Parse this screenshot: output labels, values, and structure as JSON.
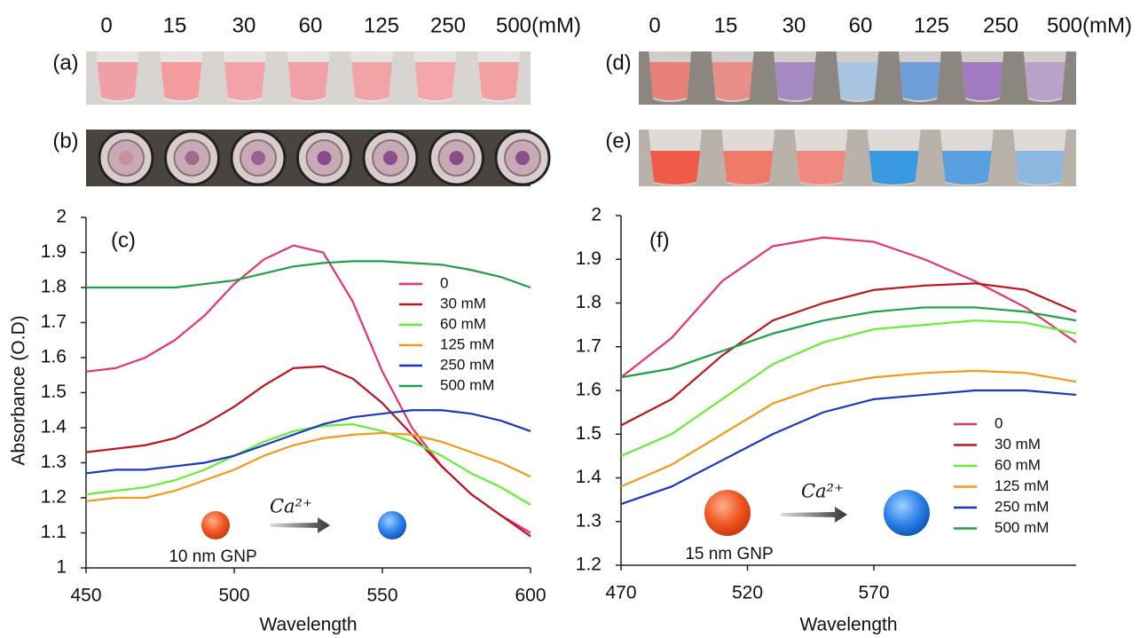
{
  "photo_panels": {
    "left": {
      "concentrations": [
        "0",
        "15",
        "30",
        "60",
        "125",
        "250",
        "500(mM)"
      ],
      "labels": [
        "(a)",
        "(b)"
      ]
    },
    "right": {
      "concentrations": [
        "0",
        "15",
        "30",
        "60",
        "125",
        "250",
        "500(mM)"
      ],
      "labels": [
        "(d)",
        "(e)"
      ]
    }
  },
  "chart_data": [
    {
      "type": "line",
      "xlabel": "Wavelength",
      "ylabel": "Absorbance (O.D)",
      "annotations": [
        "(c)",
        "10 nm GNP",
        "Ca²⁺"
      ],
      "x": [
        450,
        460,
        470,
        480,
        490,
        500,
        510,
        520,
        530,
        540,
        550,
        560,
        570,
        580,
        590,
        600
      ],
      "xlim": [
        450,
        600
      ],
      "xticks": [
        450,
        500,
        550,
        600
      ],
      "ylim": [
        1,
        2
      ],
      "yticks": [
        1,
        1.1,
        1.2,
        1.3,
        1.4,
        1.5,
        1.6,
        1.7,
        1.8,
        1.9,
        2
      ],
      "legend": "upper right",
      "series": [
        {
          "name": "0",
          "color": "#e8336e",
          "values": [
            1.56,
            1.57,
            1.6,
            1.65,
            1.72,
            1.81,
            1.88,
            1.92,
            1.9,
            1.76,
            1.56,
            1.4,
            1.29,
            1.21,
            1.15,
            1.1
          ]
        },
        {
          "name": "30 mM",
          "color": "#c0141e",
          "values": [
            1.33,
            1.34,
            1.35,
            1.37,
            1.41,
            1.46,
            1.52,
            1.57,
            1.575,
            1.54,
            1.47,
            1.38,
            1.29,
            1.21,
            1.15,
            1.09
          ]
        },
        {
          "name": "60 mM",
          "color": "#66ee33",
          "values": [
            1.21,
            1.22,
            1.23,
            1.25,
            1.28,
            1.32,
            1.36,
            1.39,
            1.405,
            1.41,
            1.39,
            1.36,
            1.32,
            1.27,
            1.23,
            1.18
          ]
        },
        {
          "name": "125 mM",
          "color": "#f39a1a",
          "values": [
            1.19,
            1.2,
            1.2,
            1.22,
            1.25,
            1.28,
            1.32,
            1.35,
            1.37,
            1.38,
            1.385,
            1.38,
            1.36,
            1.33,
            1.3,
            1.26
          ]
        },
        {
          "name": "250 mM",
          "color": "#1a36c8",
          "values": [
            1.27,
            1.28,
            1.28,
            1.29,
            1.3,
            1.32,
            1.35,
            1.38,
            1.41,
            1.43,
            1.44,
            1.45,
            1.45,
            1.44,
            1.42,
            1.39
          ]
        },
        {
          "name": "500 mM",
          "color": "#1da04a",
          "values": [
            1.8,
            1.8,
            1.8,
            1.8,
            1.81,
            1.82,
            1.84,
            1.86,
            1.87,
            1.875,
            1.875,
            1.87,
            1.865,
            1.85,
            1.83,
            1.8
          ]
        }
      ]
    },
    {
      "type": "line",
      "xlabel": "Wavelength",
      "annotations": [
        "(f)",
        "15 nm GNP",
        "Ca²⁺"
      ],
      "x": [
        470,
        490,
        510,
        530,
        550,
        570,
        590,
        610,
        630,
        650
      ],
      "xlim": [
        470,
        650
      ],
      "xticks": [
        470,
        520,
        570
      ],
      "ylim": [
        1.2,
        2
      ],
      "yticks": [
        1.2,
        1.3,
        1.4,
        1.5,
        1.6,
        1.7,
        1.8,
        1.9,
        2
      ],
      "legend": "lower right",
      "series": [
        {
          "name": "0",
          "color": "#e8336e",
          "values": [
            1.63,
            1.72,
            1.85,
            1.93,
            1.95,
            1.94,
            1.9,
            1.85,
            1.79,
            1.71
          ]
        },
        {
          "name": "30 mM",
          "color": "#c0141e",
          "values": [
            1.52,
            1.58,
            1.68,
            1.76,
            1.8,
            1.83,
            1.84,
            1.845,
            1.83,
            1.78
          ]
        },
        {
          "name": "60 mM",
          "color": "#66ee33",
          "values": [
            1.45,
            1.5,
            1.58,
            1.66,
            1.71,
            1.74,
            1.75,
            1.76,
            1.755,
            1.73
          ]
        },
        {
          "name": "125 mM",
          "color": "#f39a1a",
          "values": [
            1.38,
            1.43,
            1.5,
            1.57,
            1.61,
            1.63,
            1.64,
            1.645,
            1.64,
            1.62
          ]
        },
        {
          "name": "250 mM",
          "color": "#1a36c8",
          "values": [
            1.34,
            1.38,
            1.44,
            1.5,
            1.55,
            1.58,
            1.59,
            1.6,
            1.6,
            1.59
          ]
        },
        {
          "name": "500 mM",
          "color": "#1da04a",
          "values": [
            1.63,
            1.65,
            1.69,
            1.73,
            1.76,
            1.78,
            1.79,
            1.79,
            1.78,
            1.76
          ]
        }
      ]
    }
  ]
}
